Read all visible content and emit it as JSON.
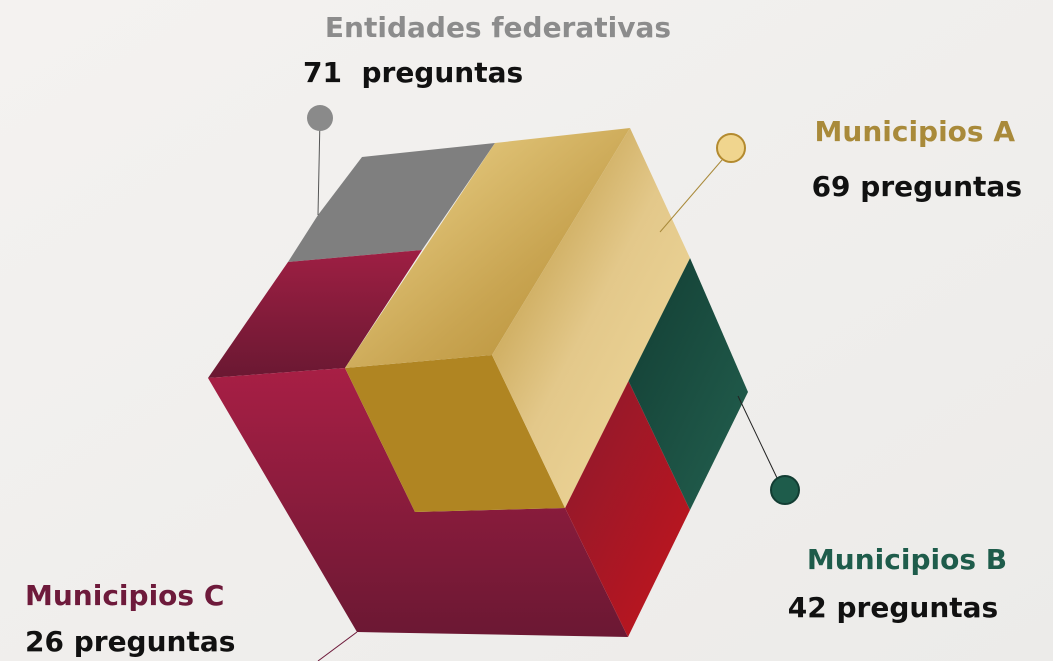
{
  "nodes": [
    {
      "label": "Entidades federativas",
      "count": "71  preguntas"
    },
    {
      "label": "Municipios A",
      "count": "69 preguntas"
    },
    {
      "label": "Municipios B",
      "count": "42 preguntas"
    },
    {
      "label": "Municipios C",
      "count": "26 preguntas"
    }
  ]
}
